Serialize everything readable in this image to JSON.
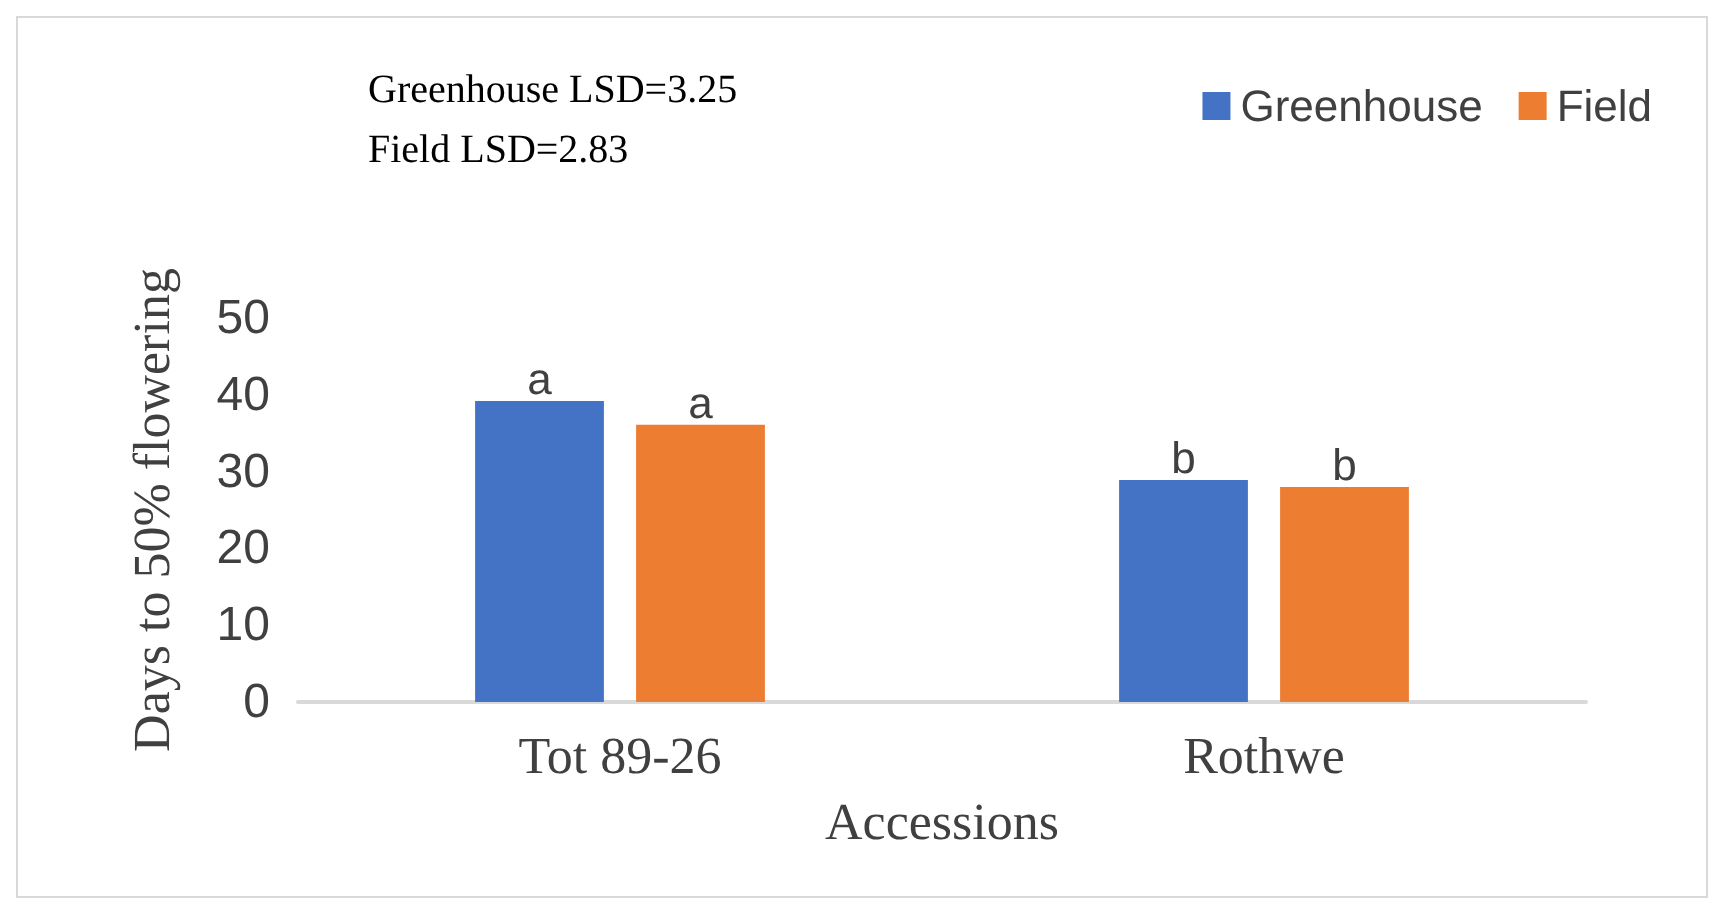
{
  "chart_data": {
    "type": "bar",
    "xlabel": "Accessions",
    "ylabel": "Days to 50% flowering",
    "categories": [
      "Tot 89-26",
      "Rothwe"
    ],
    "series": [
      {
        "name": "Greenhouse",
        "color": "#4472c4",
        "values": [
          39.2,
          28.9
        ],
        "value_labels": [
          "a",
          "b"
        ]
      },
      {
        "name": "Field",
        "color": "#ed7d31",
        "values": [
          36.1,
          28.0
        ],
        "value_labels": [
          "a",
          "b"
        ]
      }
    ],
    "ylim": [
      0,
      50
    ],
    "yticks": [
      0,
      10,
      20,
      30,
      40,
      50
    ],
    "grid": false,
    "legend": "top right",
    "annotations": [
      "Greenhouse LSD=3.25",
      "Field LSD=2.83"
    ]
  }
}
